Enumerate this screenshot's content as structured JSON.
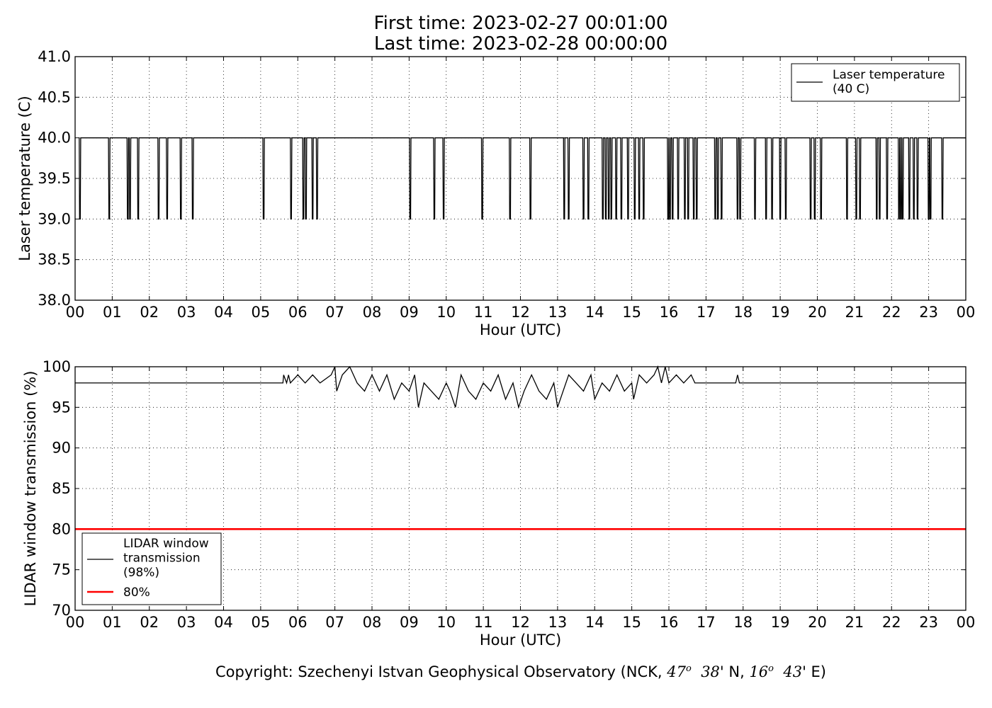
{
  "header": {
    "first_time": "First time: 2023-02-27 00:01:00",
    "last_time": "Last time: 2023-02-28 00:00:00"
  },
  "copyright": {
    "prefix": "Copyright: Szechenyi Istvan Geophysical Observatory (NCK, ",
    "lat_deg": "47",
    "lat_min": "38",
    "lat_suffix": "' N, ",
    "lon_deg": "16",
    "lon_min": "43",
    "lon_suffix": "' E)",
    "degree_mark": "o"
  },
  "chart_data": [
    {
      "type": "line",
      "ylabel": "Laser temperature (C)",
      "xlabel": "Hour (UTC)",
      "xlim": [
        0,
        24
      ],
      "ylim": [
        38.0,
        41.0
      ],
      "x_ticks": [
        "00",
        "01",
        "02",
        "03",
        "04",
        "05",
        "06",
        "07",
        "08",
        "09",
        "10",
        "11",
        "12",
        "13",
        "14",
        "15",
        "16",
        "17",
        "18",
        "19",
        "20",
        "21",
        "22",
        "23",
        "00"
      ],
      "y_ticks": [
        "38.0",
        "38.5",
        "39.0",
        "39.5",
        "40.0",
        "40.5",
        "41.0"
      ],
      "grid": true,
      "legend_position": "top-right",
      "series": [
        {
          "name": "Laser temperature\n(40 C)",
          "color": "#000000",
          "baseline": 40.0,
          "dip_value": 39.0,
          "dip_hours": [
            0.13,
            0.92,
            1.42,
            1.48,
            1.7,
            2.25,
            2.48,
            2.85,
            3.17,
            5.08,
            5.82,
            6.15,
            6.22,
            6.4,
            6.52,
            9.03,
            9.68,
            9.93,
            10.97,
            11.72,
            12.27,
            13.18,
            13.3,
            13.7,
            13.83,
            14.22,
            14.3,
            14.38,
            14.45,
            14.58,
            14.72,
            14.9,
            15.08,
            15.2,
            15.32,
            15.98,
            16.03,
            16.1,
            16.25,
            16.43,
            16.52,
            16.67,
            16.75,
            17.25,
            17.32,
            17.42,
            17.85,
            17.92,
            18.32,
            18.62,
            18.78,
            19.0,
            19.15,
            19.82,
            19.93,
            20.1,
            20.8,
            21.05,
            21.15,
            21.6,
            21.68,
            21.88,
            22.2,
            22.25,
            22.3,
            22.48,
            22.6,
            22.7,
            23.0,
            23.05,
            23.37
          ]
        }
      ]
    },
    {
      "type": "line",
      "ylabel": "LIDAR window transmission (%)",
      "xlabel": "Hour (UTC)",
      "xlim": [
        0,
        24
      ],
      "ylim": [
        70,
        100
      ],
      "x_ticks": [
        "00",
        "01",
        "02",
        "03",
        "04",
        "05",
        "06",
        "07",
        "08",
        "09",
        "10",
        "11",
        "12",
        "13",
        "14",
        "15",
        "16",
        "17",
        "18",
        "19",
        "20",
        "21",
        "22",
        "23",
        "00"
      ],
      "y_ticks": [
        "70",
        "75",
        "80",
        "85",
        "90",
        "95",
        "100"
      ],
      "grid": true,
      "legend_position": "bottom-left",
      "series": [
        {
          "name": "LIDAR window\ntransmission\n(98%)",
          "color": "#000000",
          "baseline": 98,
          "noisy_start_hour": 5.6,
          "noisy_end_hour": 16.7,
          "points": [
            [
              0,
              98
            ],
            [
              5.6,
              98
            ],
            [
              5.62,
              99
            ],
            [
              5.7,
              98
            ],
            [
              5.75,
              99
            ],
            [
              5.8,
              98
            ],
            [
              6.0,
              99
            ],
            [
              6.2,
              98
            ],
            [
              6.4,
              99
            ],
            [
              6.6,
              98
            ],
            [
              6.9,
              99
            ],
            [
              7.0,
              100
            ],
            [
              7.05,
              97
            ],
            [
              7.2,
              99
            ],
            [
              7.4,
              100
            ],
            [
              7.6,
              98
            ],
            [
              7.8,
              97
            ],
            [
              8.0,
              99
            ],
            [
              8.2,
              97
            ],
            [
              8.4,
              99
            ],
            [
              8.6,
              96
            ],
            [
              8.8,
              98
            ],
            [
              9.0,
              97
            ],
            [
              9.15,
              99
            ],
            [
              9.25,
              95
            ],
            [
              9.4,
              98
            ],
            [
              9.6,
              97
            ],
            [
              9.8,
              96
            ],
            [
              10.0,
              98
            ],
            [
              10.1,
              97
            ],
            [
              10.25,
              95
            ],
            [
              10.4,
              99
            ],
            [
              10.6,
              97
            ],
            [
              10.8,
              96
            ],
            [
              11.0,
              98
            ],
            [
              11.2,
              97
            ],
            [
              11.4,
              99
            ],
            [
              11.6,
              96
            ],
            [
              11.8,
              98
            ],
            [
              11.95,
              95
            ],
            [
              12.1,
              97
            ],
            [
              12.3,
              99
            ],
            [
              12.5,
              97
            ],
            [
              12.7,
              96
            ],
            [
              12.9,
              98
            ],
            [
              13.0,
              95
            ],
            [
              13.15,
              97
            ],
            [
              13.3,
              99
            ],
            [
              13.5,
              98
            ],
            [
              13.7,
              97
            ],
            [
              13.9,
              99
            ],
            [
              14.0,
              96
            ],
            [
              14.2,
              98
            ],
            [
              14.4,
              97
            ],
            [
              14.6,
              99
            ],
            [
              14.8,
              97
            ],
            [
              15.0,
              98
            ],
            [
              15.05,
              96
            ],
            [
              15.2,
              99
            ],
            [
              15.4,
              98
            ],
            [
              15.6,
              99
            ],
            [
              15.7,
              100
            ],
            [
              15.8,
              98
            ],
            [
              15.9,
              100
            ],
            [
              16.0,
              98
            ],
            [
              16.2,
              99
            ],
            [
              16.4,
              98
            ],
            [
              16.6,
              99
            ],
            [
              16.7,
              98
            ],
            [
              17.8,
              98
            ],
            [
              17.85,
              99
            ],
            [
              17.9,
              98
            ],
            [
              24,
              98
            ]
          ]
        },
        {
          "name": "80%",
          "color": "#ff0000",
          "values_constant": 80
        }
      ]
    }
  ]
}
